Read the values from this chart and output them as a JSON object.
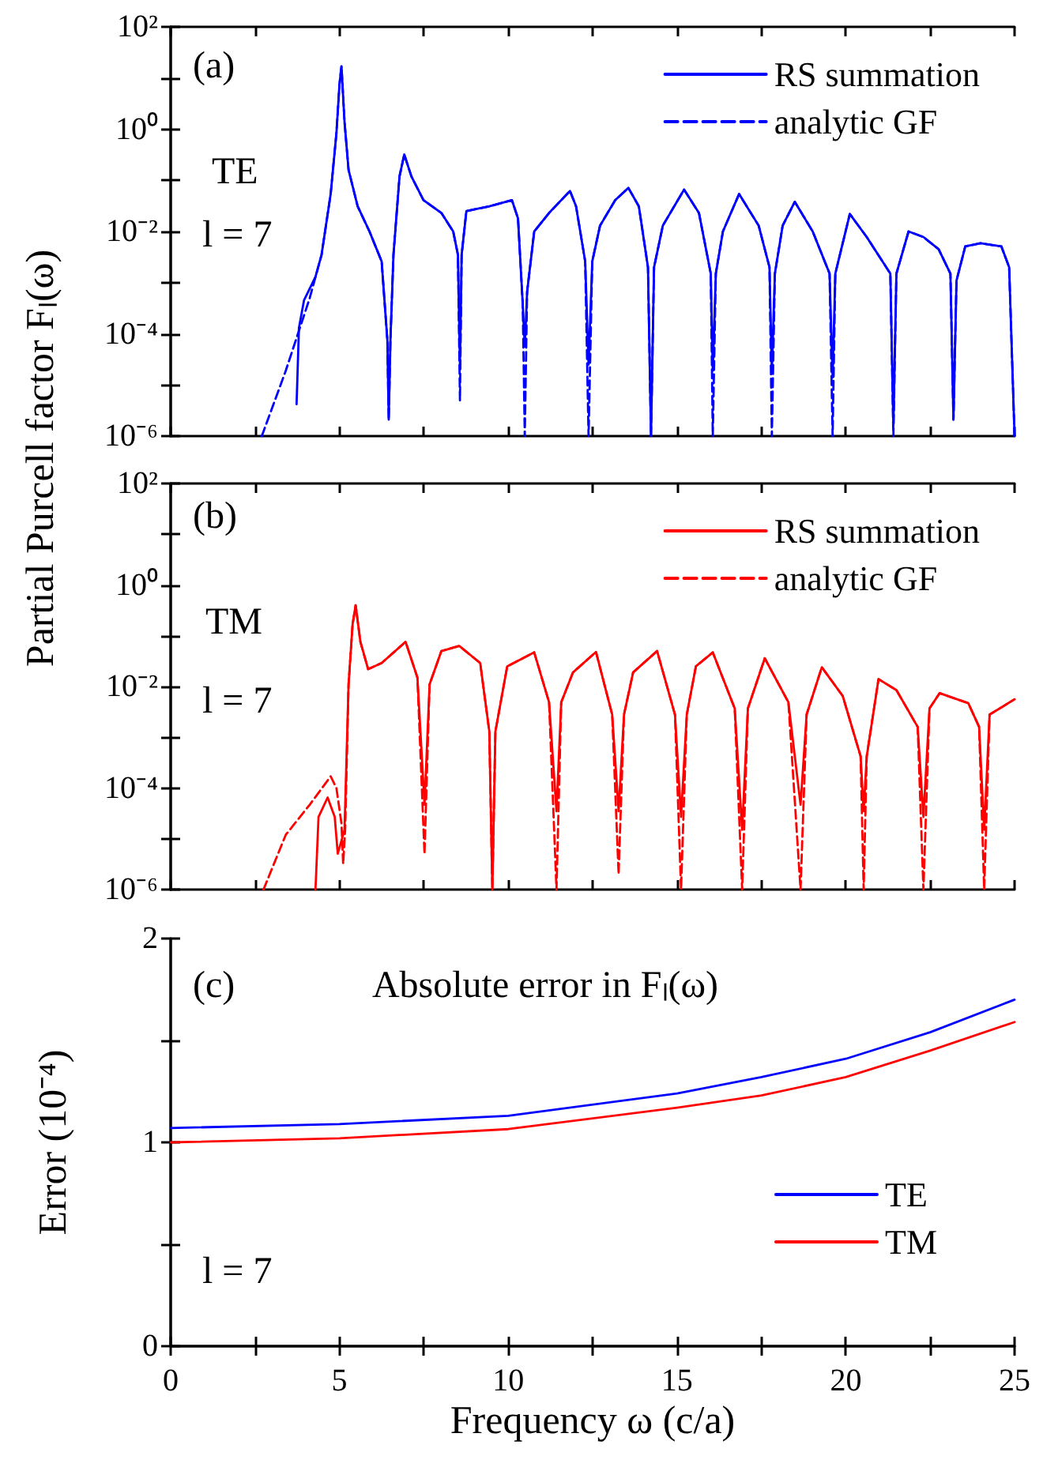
{
  "chart_data": [
    {
      "type": "line",
      "ylabel": "Partial Purcell factor Fₗ(ω)",
      "annotations": [
        "(a)",
        "TE",
        "l = 7"
      ],
      "legend": "top right",
      "log": "y",
      "tick_labels": "y",
      "xlim": [
        0,
        25
      ],
      "xticks": [
        0,
        {
          "value": 2.5,
          "label": null
        },
        5,
        {
          "value": 7.5,
          "label": null
        },
        10,
        {
          "value": 12.5,
          "label": null
        },
        15,
        {
          "value": 17.5,
          "label": null
        },
        20,
        {
          "value": 22.5,
          "label": null
        },
        25
      ],
      "ylim": [
        1e-06,
        100
      ],
      "yticks": [
        {
          "value": 1e-06,
          "label": "10⁻⁶"
        },
        {
          "value": 1e-05,
          "label": null
        },
        {
          "value": 0.0001,
          "label": "10⁻⁴"
        },
        {
          "value": 0.001,
          "label": null
        },
        {
          "value": 0.01,
          "label": "10⁻²"
        },
        {
          "value": 0.1,
          "label": null
        },
        {
          "value": 1,
          "label": "10⁰"
        },
        {
          "value": 10,
          "label": null
        },
        {
          "value": 100,
          "label": "10²"
        }
      ],
      "series": [
        {
          "name": "RS summation",
          "color": "#0000ff",
          "line_style": "solid",
          "x": [
            3.73,
            3.8,
            3.95,
            4.29,
            4.47,
            4.74,
            4.91,
            5.0,
            5.06,
            5.15,
            5.27,
            5.54,
            5.89,
            6.25,
            6.42,
            6.46,
            6.51,
            6.6,
            6.78,
            6.92,
            7.13,
            7.49,
            8.02,
            8.37,
            8.51,
            8.57,
            8.62,
            8.76,
            9.44,
            10.11,
            10.29,
            10.43,
            10.49,
            10.56,
            10.77,
            11.21,
            11.83,
            12.01,
            12.28,
            12.38,
            12.49,
            12.72,
            13.17,
            13.56,
            13.87,
            14.14,
            14.23,
            14.32,
            14.58,
            15.21,
            15.65,
            16.0,
            16.06,
            16.15,
            16.36,
            16.84,
            17.42,
            17.74,
            17.81,
            17.9,
            18.13,
            18.49,
            19.02,
            19.52,
            19.61,
            19.69,
            20.12,
            20.62,
            21.32,
            21.41,
            21.5,
            21.86,
            22.3,
            22.75,
            23.1,
            23.19,
            23.28,
            23.54,
            23.99,
            24.61,
            24.84,
            25.0
          ],
          "values": [
            4.2e-06,
            0.00013,
            0.00045,
            0.0013,
            0.0035,
            0.054,
            0.83,
            7.4,
            17,
            1.4,
            0.16,
            0.031,
            0.01,
            0.0026,
            7.4e-05,
            2.1e-06,
            7.4e-05,
            0.0035,
            0.12,
            0.32,
            0.12,
            0.041,
            0.023,
            0.01,
            0.0035,
            2.5e-05,
            0.0035,
            0.025,
            0.031,
            0.041,
            0.018,
            0.00038,
            5.6e-05,
            0.00066,
            0.01,
            0.023,
            0.062,
            0.031,
            0.0026,
            2.5e-05,
            0.0026,
            0.013,
            0.041,
            0.071,
            0.031,
            0.002,
            1e-06,
            0.002,
            0.013,
            0.066,
            0.023,
            0.0015,
            1.9e-05,
            0.0015,
            0.01,
            0.054,
            0.013,
            0.002,
            1.9e-05,
            0.0015,
            0.013,
            0.038,
            0.01,
            0.0015,
            1.4e-05,
            0.0015,
            0.022,
            0.0078,
            0.0015,
            1.6e-06,
            0.0015,
            0.01,
            0.0078,
            0.0045,
            0.0015,
            2.1e-06,
            0.0011,
            0.0051,
            0.0059,
            0.0051,
            0.002,
            1e-06
          ]
        },
        {
          "name": "analytic GF",
          "color": "#0000ff",
          "line_style": "dashed",
          "x": [
            2.7,
            3.41,
            4.12,
            4.47,
            4.74,
            4.91,
            5.0,
            5.06,
            5.15,
            5.27,
            5.54,
            5.89,
            6.25,
            6.42,
            6.46,
            6.51,
            6.6,
            6.78,
            6.92,
            7.13,
            7.49,
            8.02,
            8.37,
            8.51,
            8.57,
            8.62,
            8.76,
            9.44,
            10.11,
            10.29,
            10.43,
            10.49,
            10.56,
            10.77,
            11.21,
            11.83,
            12.01,
            12.28,
            12.38,
            12.49,
            12.72,
            13.17,
            13.56,
            13.87,
            14.14,
            14.23,
            14.32,
            14.58,
            15.21,
            15.65,
            16.0,
            16.06,
            16.15,
            16.36,
            16.84,
            17.42,
            17.74,
            17.81,
            17.9,
            18.13,
            18.49,
            19.02,
            19.52,
            19.61,
            19.69,
            20.12,
            20.62,
            21.32,
            21.41,
            21.5,
            21.86,
            22.3,
            22.75,
            23.1,
            23.19,
            23.28,
            23.54,
            23.99,
            24.61,
            24.84,
            25.0
          ],
          "values": [
            1e-06,
            1.9e-05,
            0.0005,
            0.0035,
            0.054,
            0.83,
            7.4,
            17,
            1.4,
            0.16,
            0.031,
            0.01,
            0.0026,
            7.4e-05,
            2.1e-06,
            7.4e-05,
            0.0035,
            0.12,
            0.32,
            0.12,
            0.041,
            0.023,
            0.01,
            0.0035,
            5e-06,
            0.0035,
            0.025,
            0.031,
            0.041,
            0.018,
            0.00038,
            1e-06,
            0.00066,
            0.01,
            0.023,
            0.062,
            0.031,
            0.0026,
            1e-06,
            0.0026,
            0.013,
            0.041,
            0.071,
            0.031,
            0.002,
            1e-06,
            0.002,
            0.013,
            0.066,
            0.023,
            0.0015,
            1e-06,
            0.0015,
            0.01,
            0.054,
            0.013,
            0.002,
            1e-06,
            0.0015,
            0.013,
            0.038,
            0.01,
            0.0015,
            1e-06,
            0.0015,
            0.022,
            0.0078,
            0.0015,
            1e-06,
            0.0015,
            0.01,
            0.0078,
            0.0045,
            0.0015,
            2.1e-06,
            0.0011,
            0.0051,
            0.0059,
            0.0051,
            0.002,
            1e-06
          ]
        }
      ]
    },
    {
      "type": "line",
      "annotations": [
        "(b)",
        "TM",
        "l = 7"
      ],
      "legend": "top right",
      "log": "y",
      "tick_labels": "y",
      "xlim": [
        0,
        25
      ],
      "xticks": [
        0,
        {
          "value": 2.5,
          "label": null
        },
        5,
        {
          "value": 7.5,
          "label": null
        },
        10,
        {
          "value": 12.5,
          "label": null
        },
        15,
        {
          "value": 17.5,
          "label": null
        },
        20,
        {
          "value": 22.5,
          "label": null
        },
        25
      ],
      "ylim": [
        1e-06,
        100
      ],
      "yticks": [
        {
          "value": 1e-06,
          "label": "10⁻⁶"
        },
        {
          "value": 1e-05,
          "label": null
        },
        {
          "value": 0.0001,
          "label": "10⁻⁴"
        },
        {
          "value": 0.001,
          "label": null
        },
        {
          "value": 0.01,
          "label": "10⁻²"
        },
        {
          "value": 0.1,
          "label": null
        },
        {
          "value": 1,
          "label": "10⁰"
        },
        {
          "value": 10,
          "label": null
        },
        {
          "value": 100,
          "label": "10²"
        }
      ],
      "series": [
        {
          "name": "RS summation",
          "color": "#ff0000",
          "line_style": "solid",
          "x": [
            4.29,
            4.38,
            4.65,
            4.86,
            4.95,
            5.15,
            5.27,
            5.39,
            5.48,
            5.62,
            5.85,
            6.25,
            6.96,
            7.31,
            7.52,
            7.67,
            8.02,
            8.55,
            9.17,
            9.44,
            9.53,
            9.62,
            9.97,
            10.77,
            11.21,
            11.43,
            11.57,
            11.92,
            12.6,
            13.08,
            13.27,
            13.43,
            13.7,
            14.41,
            14.94,
            15.12,
            15.29,
            15.56,
            16.06,
            16.71,
            16.93,
            17.1,
            17.6,
            18.3,
            18.66,
            18.84,
            19.29,
            19.91,
            20.44,
            20.53,
            20.62,
            20.97,
            21.5,
            22.13,
            22.3,
            22.48,
            22.78,
            23.63,
            23.95,
            24.1,
            24.26,
            25
          ],
          "values": [
            1e-06,
            2.7e-05,
            6.5e-05,
            2.7e-05,
            5.1e-06,
            1.5e-05,
            0.011,
            0.17,
            0.4,
            0.076,
            0.022,
            0.029,
            0.076,
            0.015,
            4.7e-05,
            0.011,
            0.05,
            0.063,
            0.029,
            0.0013,
            1e-06,
            0.0013,
            0.025,
            0.047,
            0.0049,
            3.5e-05,
            0.0049,
            0.019,
            0.048,
            0.0028,
            3.5e-05,
            0.0028,
            0.019,
            0.05,
            0.0028,
            2.7e-05,
            0.0028,
            0.025,
            0.047,
            0.0037,
            1.5e-05,
            0.0037,
            0.036,
            0.0049,
            4.7e-05,
            0.0028,
            0.024,
            0.0065,
            0.00042,
            3.5e-05,
            0.00042,
            0.014,
            0.0085,
            0.0016,
            2.7e-05,
            0.0037,
            0.0074,
            0.0047,
            0.0016,
            1.5e-05,
            0.0028,
            0.0056
          ]
        },
        {
          "name": "analytic GF",
          "color": "#ff0000",
          "line_style": "dashed",
          "x": [
            2.75,
            3.41,
            4.12,
            4.74,
            4.91,
            5.06,
            5.11,
            5.17,
            5.27,
            5.39,
            5.48,
            5.62,
            5.85,
            6.25,
            6.96,
            7.31,
            7.52,
            7.67,
            8.02,
            8.55,
            9.17,
            9.44,
            9.53,
            9.62,
            9.97,
            10.77,
            11.21,
            11.43,
            11.57,
            11.92,
            12.6,
            13.08,
            13.27,
            13.43,
            13.7,
            14.41,
            14.94,
            15.12,
            15.29,
            15.56,
            16.06,
            16.71,
            16.93,
            17.1,
            17.6,
            18.3,
            18.66,
            18.84,
            19.29,
            19.91,
            20.44,
            20.53,
            20.62,
            20.97,
            21.5,
            22.13,
            22.3,
            22.48,
            22.78,
            23.63,
            23.95,
            24.1,
            24.26,
            25
          ],
          "values": [
            1e-06,
            1.2e-05,
            4.7e-05,
            0.00017,
            0.0001,
            2e-05,
            3.2e-06,
            1.6e-05,
            0.011,
            0.17,
            0.4,
            0.076,
            0.022,
            0.029,
            0.076,
            0.015,
            5e-06,
            0.011,
            0.05,
            0.063,
            0.029,
            0.0013,
            1e-06,
            0.0013,
            0.025,
            0.047,
            0.0049,
            1e-06,
            0.0049,
            0.019,
            0.048,
            0.0028,
            2e-06,
            0.0028,
            0.019,
            0.05,
            0.0028,
            1e-06,
            0.0028,
            0.025,
            0.047,
            0.0037,
            1e-06,
            0.0037,
            0.036,
            0.0049,
            1e-06,
            0.0028,
            0.024,
            0.0065,
            0.00042,
            1e-06,
            0.00042,
            0.014,
            0.0085,
            0.0016,
            1e-06,
            0.0037,
            0.0074,
            0.0047,
            0.0016,
            1e-06,
            0.0028,
            0.0056
          ]
        }
      ]
    },
    {
      "type": "line",
      "xlabel": "Frequency ω (c/a)",
      "ylabel": "Error (10⁻⁴)",
      "annotations": [
        "(c)",
        "Absolute error in Fₗ(ω)",
        "l = 7"
      ],
      "legend": "bottom right",
      "xlim": [
        0,
        25
      ],
      "xticks": [
        0,
        {
          "value": 2.5,
          "label": null
        },
        5,
        {
          "value": 7.5,
          "label": null
        },
        10,
        {
          "value": 12.5,
          "label": null
        },
        15,
        {
          "value": 17.5,
          "label": null
        },
        20,
        {
          "value": 22.5,
          "label": null
        },
        25
      ],
      "ylim": [
        0,
        2
      ],
      "yticks": [
        0,
        {
          "value": 0.5,
          "label": null
        },
        1,
        {
          "value": 1.5,
          "label": null
        },
        2
      ],
      "series": [
        {
          "name": "TE",
          "color": "#0000ff",
          "line_style": "solid",
          "x": [
            0,
            5,
            10,
            15,
            17.5,
            20,
            22.5,
            25
          ],
          "values": [
            1.07,
            1.09,
            1.13,
            1.24,
            1.32,
            1.41,
            1.54,
            1.7
          ]
        },
        {
          "name": "TM",
          "color": "#ff0000",
          "line_style": "solid",
          "x": [
            0,
            5,
            10,
            15,
            17.5,
            20,
            22.5,
            25
          ],
          "values": [
            1.0,
            1.02,
            1.065,
            1.17,
            1.23,
            1.32,
            1.45,
            1.59
          ]
        }
      ]
    }
  ]
}
